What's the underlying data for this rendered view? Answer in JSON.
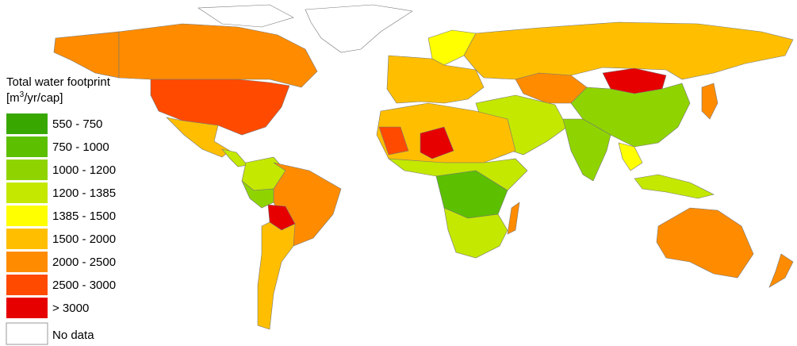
{
  "legend": {
    "title": "Total water footprint",
    "unit_prefix": "[m",
    "unit_exponent": "3",
    "unit_suffix": "/yr/cap]",
    "entries": [
      {
        "label": "550 - 750",
        "color": "#38a800"
      },
      {
        "label": "750 - 1000",
        "color": "#5cbf00"
      },
      {
        "label": "1000 - 1200",
        "color": "#8fd400"
      },
      {
        "label": "1200 - 1385",
        "color": "#c4e800"
      },
      {
        "label": "1385 - 1500",
        "color": "#ffff00"
      },
      {
        "label": "1500 - 2000",
        "color": "#ffbf00"
      },
      {
        "label": "2000 - 2500",
        "color": "#ff8c00"
      },
      {
        "label": "2500 - 3000",
        "color": "#ff4a00"
      },
      {
        "label": "> 3000",
        "color": "#e60000"
      }
    ],
    "no_data": {
      "label": "No data",
      "color": "#ffffff"
    }
  }
}
